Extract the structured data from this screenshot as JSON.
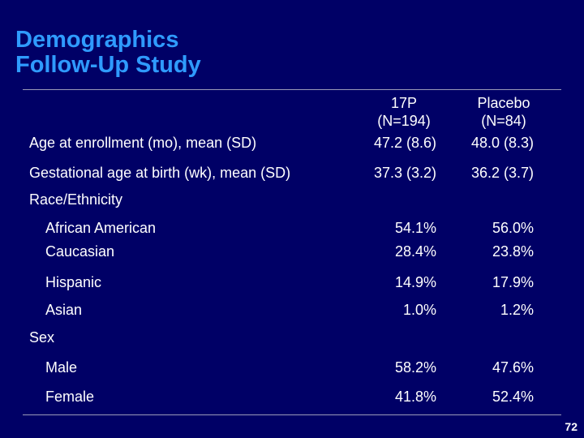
{
  "slide": {
    "title_line1": "Demographics",
    "title_line2": "Follow-Up Study",
    "page_number": "72"
  },
  "columns": {
    "group1_name": "17P",
    "group1_n": "(N=194)",
    "group2_name": "Placebo",
    "group2_n": "(N=84)"
  },
  "rows": {
    "age_label": "Age at enrollment (mo), mean (SD)",
    "age_g1": "47.2 (8.6)",
    "age_g2": "48.0 (8.3)",
    "gest_label": "Gestational age at birth (wk), mean (SD)",
    "gest_g1": "37.3 (3.2)",
    "gest_g2": "36.2 (3.7)",
    "race_heading": "Race/Ethnicity",
    "aa_label": "African American",
    "aa_g1": "54.1%",
    "aa_g2": "56.0%",
    "cau_label": "Caucasian",
    "cau_g1": "28.4%",
    "cau_g2": "23.8%",
    "his_label": "Hispanic",
    "his_g1": "14.9%",
    "his_g2": "17.9%",
    "asian_label": "Asian",
    "asian_g1": "1.0%",
    "asian_g2": "1.2%",
    "sex_heading": "Sex",
    "male_label": "Male",
    "male_g1": "58.2%",
    "male_g2": "47.6%",
    "female_label": "Female",
    "female_g1": "41.8%",
    "female_g2": "52.4%"
  }
}
